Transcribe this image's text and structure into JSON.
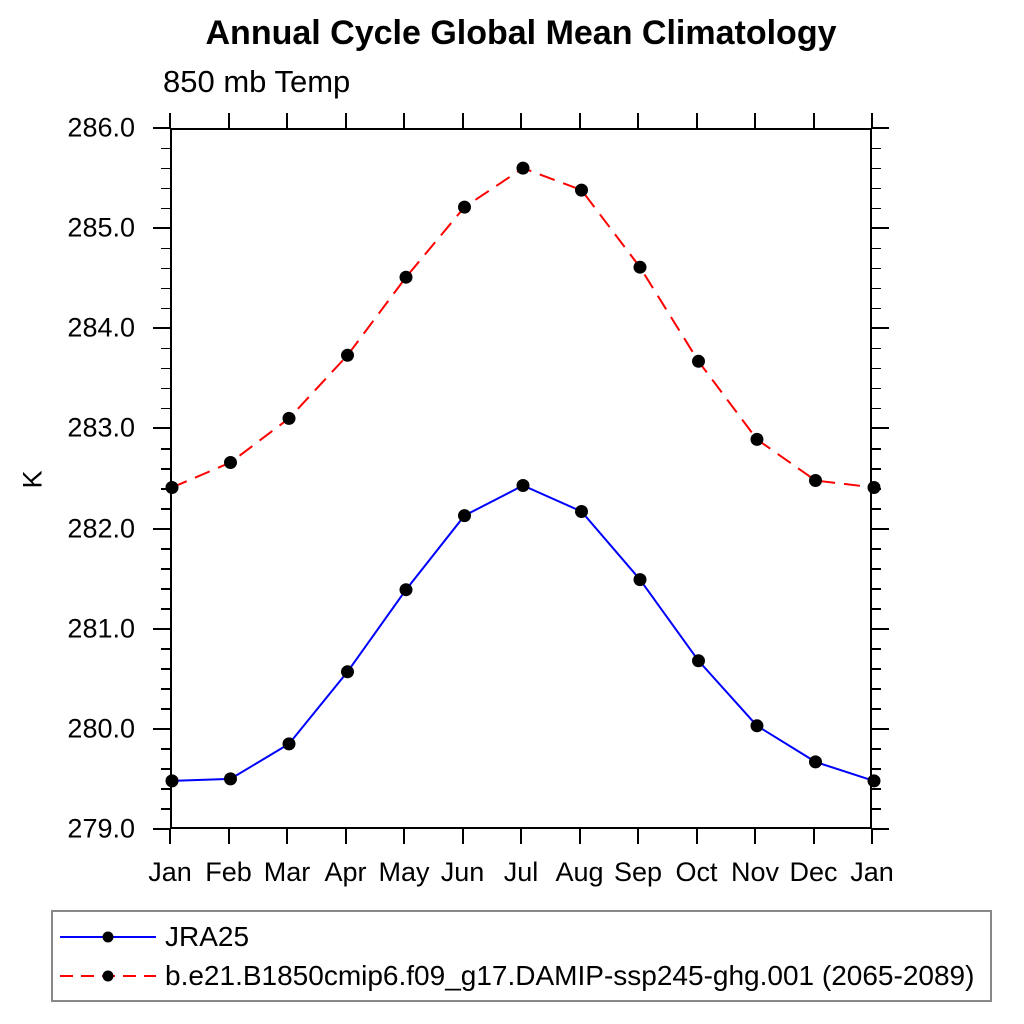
{
  "title": "Annual Cycle Global Mean Climatology",
  "subtitle": "850 mb Temp",
  "ylabel": "K",
  "chart_data": {
    "type": "line",
    "categories": [
      "Jan",
      "Feb",
      "Mar",
      "Apr",
      "May",
      "Jun",
      "Jul",
      "Aug",
      "Sep",
      "Oct",
      "Nov",
      "Dec",
      "Jan"
    ],
    "series": [
      {
        "name": "JRA25",
        "color": "#0000ff",
        "line_style": "solid",
        "marker": "filled-circle",
        "marker_color": "#000000",
        "values": [
          279.5,
          279.52,
          279.87,
          280.59,
          281.41,
          282.15,
          282.45,
          282.19,
          281.51,
          280.7,
          280.05,
          279.69,
          279.5
        ]
      },
      {
        "name": "b.e21.B1850cmip6.f09_g17.DAMIP-ssp245-ghg.001 (2065-2089)",
        "color": "#ff0000",
        "line_style": "dashed",
        "marker": "filled-circle",
        "marker_color": "#000000",
        "values": [
          282.43,
          282.68,
          283.12,
          283.75,
          284.53,
          285.23,
          285.62,
          285.4,
          284.63,
          283.69,
          282.91,
          282.5,
          282.43
        ]
      }
    ],
    "ylim": [
      279.0,
      286.0
    ],
    "y_tick_labels": [
      "286.0",
      "285.0",
      "284.0",
      "283.0",
      "282.0",
      "281.0",
      "280.0",
      "279.0"
    ],
    "y_major_ticks": [
      286.0,
      285.0,
      284.0,
      283.0,
      282.0,
      281.0,
      280.0,
      279.0
    ],
    "y_minor_step": 0.2,
    "grid": false,
    "legend_position": "bottom",
    "frame_color": "#000000",
    "background_color": "#ffffff"
  }
}
